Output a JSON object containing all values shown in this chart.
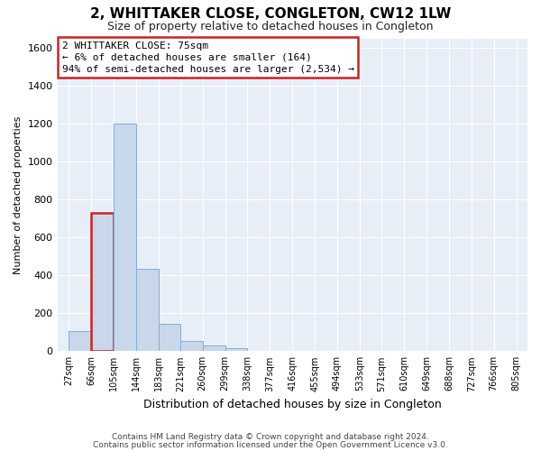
{
  "title": "2, WHITTAKER CLOSE, CONGLETON, CW12 1LW",
  "subtitle": "Size of property relative to detached houses in Congleton",
  "xlabel_bottom": "Distribution of detached houses by size in Congleton",
  "ylabel": "Number of detached properties",
  "bar_values": [
    105,
    730,
    1200,
    435,
    145,
    55,
    30,
    18,
    0,
    0,
    0,
    0,
    0,
    0,
    0,
    0,
    0,
    0,
    0,
    0
  ],
  "bin_edges": [
    27,
    66,
    105,
    144,
    183,
    221,
    260,
    299,
    338,
    377,
    416,
    455,
    494,
    533,
    571,
    610,
    649,
    688,
    727,
    766,
    805
  ],
  "bar_color": "#c8d8ea",
  "bar_edge_color": "#7fb0d8",
  "highlight_bin_index": 1,
  "highlight_edge_color": "#cc2222",
  "ylim": [
    0,
    1650
  ],
  "yticks": [
    0,
    200,
    400,
    600,
    800,
    1000,
    1200,
    1400,
    1600
  ],
  "annotation_line1": "2 WHITTAKER CLOSE: 75sqm",
  "annotation_line2": "← 6% of detached houses are smaller (164)",
  "annotation_line3": "94% of semi-detached houses are larger (2,534) →",
  "bg_color": "#e8eef8",
  "grid_color": "#ffffff",
  "footnote1": "Contains HM Land Registry data © Crown copyright and database right 2024.",
  "footnote2": "Contains public sector information licensed under the Open Government Licence v3.0.",
  "title_fontsize": 11,
  "subtitle_fontsize": 9,
  "ylabel_fontsize": 8,
  "xlabel_fontsize": 9,
  "ytick_fontsize": 8,
  "xtick_fontsize": 7,
  "annotation_fontsize": 8,
  "footnote_fontsize": 6.5
}
